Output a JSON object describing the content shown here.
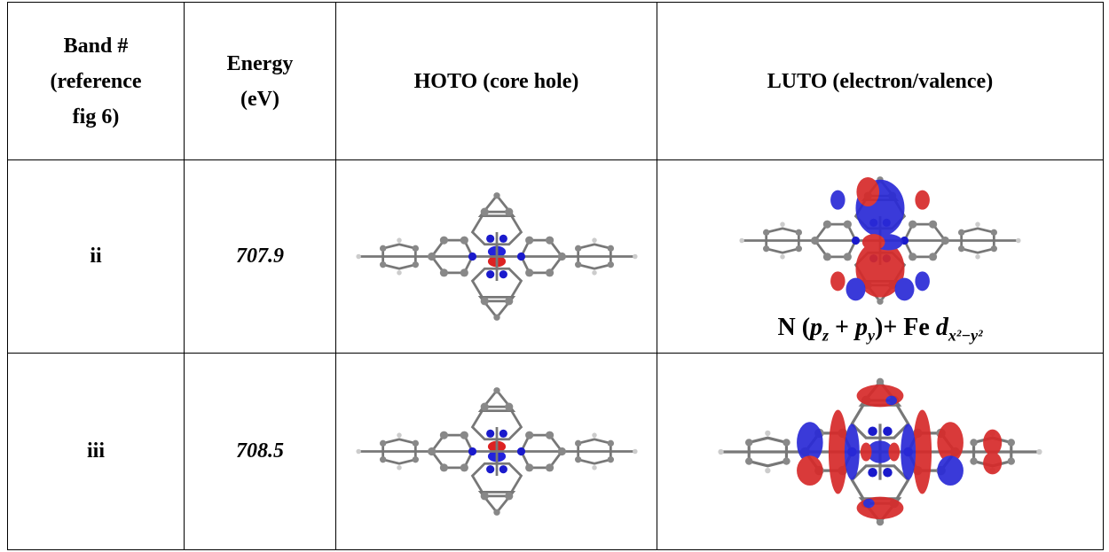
{
  "table": {
    "header": [
      [
        "Band #",
        "(reference",
        "fig 6)"
      ],
      [
        "Energy",
        "(eV)"
      ],
      [
        "HOTO (core hole)"
      ],
      [
        "LUTO (electron/valence)"
      ]
    ],
    "rows": [
      {
        "band": "ii",
        "energy": "707.9",
        "caption": [
          "N (",
          "p",
          "z",
          " + ",
          "p",
          "y",
          ")+ Fe ",
          "d",
          "x²−y²"
        ]
      },
      {
        "band": "iii",
        "energy": "708.5"
      }
    ]
  }
}
